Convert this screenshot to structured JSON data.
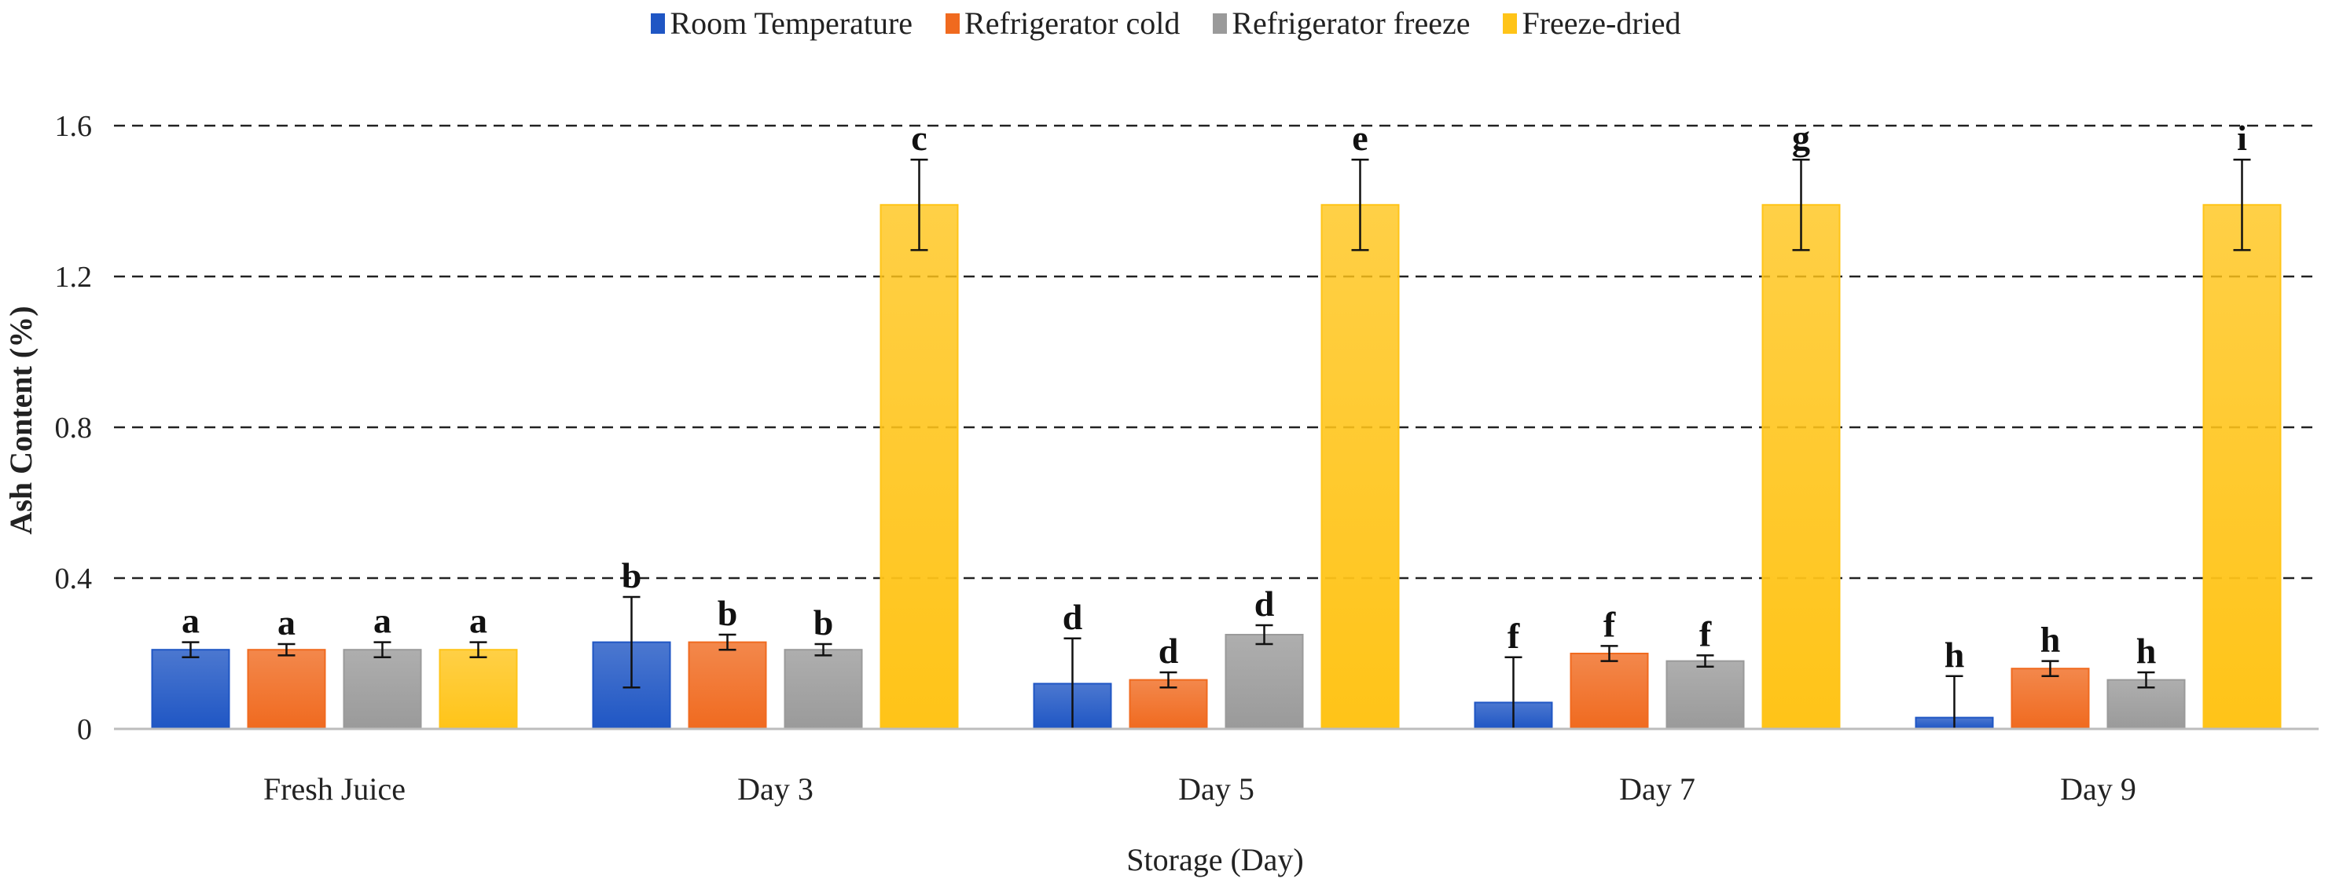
{
  "chart_data": {
    "type": "bar",
    "categories": [
      "Fresh Juice",
      "Day 3",
      "Day 5",
      "Day 7",
      "Day 9"
    ],
    "series": [
      {
        "name": "Room Temperature",
        "color": "#1f56c4",
        "values": [
          0.21,
          0.23,
          0.12,
          0.07,
          0.03
        ],
        "errors": [
          0.02,
          0.12,
          0.12,
          0.12,
          0.11
        ],
        "letters": [
          "a",
          "b",
          "d",
          "f",
          "h"
        ]
      },
      {
        "name": "Refrigerator cold",
        "color": "#f06a1f",
        "values": [
          0.21,
          0.23,
          0.13,
          0.2,
          0.16
        ],
        "errors": [
          0.015,
          0.02,
          0.02,
          0.02,
          0.02
        ],
        "letters": [
          "a",
          "b",
          "d",
          "f",
          "h"
        ]
      },
      {
        "name": "Refrigerator freeze",
        "color": "#9a9a9a",
        "values": [
          0.21,
          0.21,
          0.25,
          0.18,
          0.13
        ],
        "errors": [
          0.02,
          0.015,
          0.025,
          0.015,
          0.02
        ],
        "letters": [
          "a",
          "b",
          "d",
          "f",
          "h"
        ]
      },
      {
        "name": "Freeze-dried",
        "color": "#ffc418",
        "values": [
          0.21,
          1.39,
          1.39,
          1.39,
          1.39
        ],
        "errors": [
          0.02,
          0.12,
          0.12,
          0.12,
          0.12
        ],
        "letters": [
          "a",
          "c",
          "e",
          "g",
          "i"
        ]
      }
    ],
    "title": "",
    "xlabel": "Storage (Day)",
    "ylabel": "Ash Content (%)",
    "ylim": [
      0,
      1.6
    ],
    "yticks": [
      0,
      0.4,
      0.8,
      1.2,
      1.6
    ],
    "ytick_labels": [
      "0",
      "0.4",
      "0.8",
      "1.2",
      "1.6"
    ],
    "grid": "dashed horizontal",
    "legend_position": "top"
  }
}
